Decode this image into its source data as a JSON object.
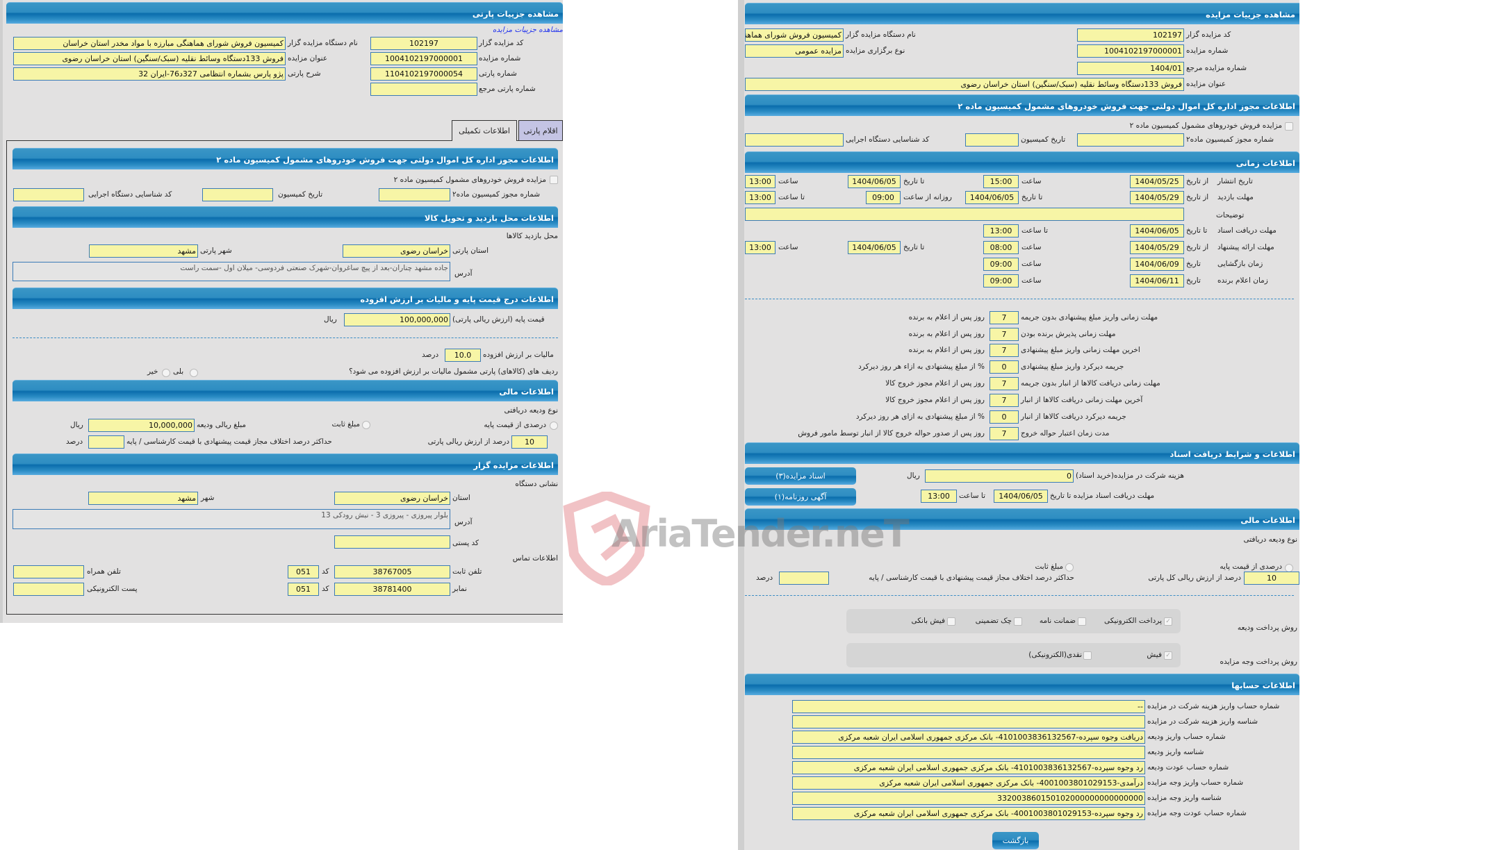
{
  "L": {
    "title": "مشاهده جزییات پارتی",
    "link": "مشاهده جزییات مزایده",
    "org_code": {
      "label": "کد مزایده گزار",
      "value": "102197"
    },
    "auction_no": {
      "label": "شماره مزایده",
      "value": "1004102197000001"
    },
    "lot_no": {
      "label": "شماره پارتی",
      "value": "1104102197000054"
    },
    "ref_lot": {
      "label": "شماره پارتی مرجع",
      "value": ""
    },
    "org_name": {
      "label": "نام دستگاه مزایده گزار",
      "value": "کمیسیون فروش شورای هماهنگی مبارزه با مواد مخدر استان خراسان"
    },
    "title_f": {
      "label": "عنوان مزایده",
      "value": "فروش 133دستگاه وسائط نقلیه (سبک/سنگین) استان خراسان رضوی"
    },
    "desc": {
      "label": "شرح پارتی",
      "value": "پژو پارس بشماره انتظامی 327د76-ایران 32"
    },
    "tabs": [
      "اقلام پارتی",
      "اطلاعات تکمیلی"
    ],
    "s1": {
      "title": "اطلاعات مجوز اداره کل اموال دولتی جهت فروش خودروهای مشمول کمیسیون ماده ۲",
      "check": "مزایده فروش خودروهای مشمول کمیسیون ماده ۲",
      "permit": "شماره مجوز کمیسیون ماده۲",
      "date": "تاریخ کمیسیون",
      "exec": "کد شناسایی دستگاه اجرایی"
    },
    "s2": {
      "title": "اطلاعات محل بازدید و تحویل کالا",
      "sub": "محل بازدید کالاها",
      "prov_l": "استان پارتی",
      "prov": "خراسان رضوی",
      "city_l": "شهر پارتی",
      "city": "مشهد",
      "addr_l": "آدرس",
      "addr": "جاده مشهد چناران-بعد از پیچ ساغروان-شهرک صنعتی فردوسی- میلان اول -سمت راست"
    },
    "s3": {
      "title": "اطلاعات درج قیمت پایه و مالیات بر ارزش افزوده",
      "base_l": "قیمت پایه (ارزش ریالی پارتی)",
      "base": "100,000,000",
      "rial": "ریال",
      "vat_l": "مالیات بر ارزش افزوده",
      "vat": "10.0",
      "percent": "درصد",
      "q": "ردیف های (کالاهای) پارتی مشمول مالیات بر ارزش افزوده می شود؟",
      "yes": "بلی",
      "no": "خیر"
    },
    "s4": {
      "title": "اطلاعات مالی",
      "type": "نوع ودیعه دریافتی",
      "pct": "درصدی از قیمت پایه",
      "fixed": "مبلغ ثابت",
      "amt_l": "مبلغ ریالی ودیعه",
      "amt": "10,000,000",
      "rial": "ریال",
      "pv": "10",
      "pv_l": "درصد از ارزش ریالی پارتی",
      "max_l": "حداکثر درصد اختلاف مجاز قیمت پیشنهادی با قیمت کارشناسی / پایه",
      "percent": "درصد"
    },
    "s5": {
      "title": "اطلاعات مزایده گزار",
      "sub": "نشانی دستگاه",
      "prov_l": "استان",
      "prov": "خراسان رضوی",
      "city_l": "شهر",
      "city": "مشهد",
      "addr_l": "آدرس",
      "addr": "بلوار پیروزی - پیروزی 3 - نبش رودکی 13",
      "zip_l": "کد پستی",
      "contact": "اطلاعات تماس",
      "tel_l": "تلفن ثابت",
      "tel": "38767005",
      "code_l": "کد",
      "code": "051",
      "mob_l": "تلفن همراه",
      "fax_l": "نمابر",
      "fax": "38781400",
      "email_l": "پست الکترونیکی"
    }
  },
  "R": {
    "title": "مشاهده جزییات مزایده",
    "org_code": {
      "label": "کد مزایده گزار",
      "value": "102197"
    },
    "auction_no": {
      "label": "شماره مزایده",
      "value": "1004102197000001"
    },
    "ref_no": {
      "label": "شماره مزایده مرجع",
      "value": "1404/01"
    },
    "title_f": {
      "label": "عنوان مزایده",
      "value": "فروش 133دستگاه وسائط نقلیه (سبک/سنگین) استان خراسان رضوی"
    },
    "org_name": {
      "label": "نام دستگاه مزایده گزار",
      "value": "کمیسیون فروش شورای هماهنگی مبارزه با مواد مخدر استان خراسان"
    },
    "type": {
      "label": "نوع برگزاری مزایده",
      "value": "مزایده عمومی"
    },
    "s1": {
      "title": "اطلاعات مجوز اداره کل اموال دولتی جهت فروش خودروهای مشمول کمیسیون ماده ۲",
      "check": "مزایده فروش خودروهای مشمول کمیسیون ماده ۲",
      "permit": "شماره مجوز کمیسیون ماده۲",
      "date": "تاریخ کمیسیون",
      "exec": "کد شناسایی دستگاه اجرایی"
    },
    "time": {
      "title": "اطلاعات زمانی",
      "from_date": "از تاریخ",
      "to_date": "تا تاریخ",
      "date": "تاریخ",
      "hour": "ساعت",
      "to_hour": "تا ساعت",
      "daily_from": "روزانه از ساعت",
      "publish": {
        "label": "تاریخ انتشار",
        "from": "1404/05/25",
        "from_t": "15:00",
        "to": "1404/06/05",
        "to_t": "13:00"
      },
      "visit": {
        "label": "مهلت بازدید",
        "from": "1404/05/29",
        "to": "1404/06/05",
        "daily": "09:00",
        "to_t": "13:00"
      },
      "notes": "توضیحات",
      "docs": {
        "label": "مهلت دریافت اسناد",
        "to": "1404/06/05",
        "to_t": "13:00"
      },
      "offer": {
        "label": "مهلت ارائه پیشنهاد",
        "from": "1404/05/29",
        "from_t": "08:00",
        "to": "1404/06/05",
        "to_t": "13:00"
      },
      "open": {
        "label": "زمان بازگشایی",
        "date": "1404/06/09",
        "t": "09:00"
      },
      "winner": {
        "label": "زمان اعلام برنده",
        "date": "1404/06/11",
        "t": "09:00"
      }
    },
    "deadlines": [
      {
        "label": "مهلت زمانی واریز مبلغ پیشنهادی بدون جریمه",
        "value": "7",
        "suffix": "روز پس از اعلام به برنده"
      },
      {
        "label": "مهلت زمانی پذیرش برنده بودن",
        "value": "7",
        "suffix": "روز پس از اعلام به برنده"
      },
      {
        "label": "اخرین مهلت زمانی واریز مبلغ پیشنهادی",
        "value": "7",
        "suffix": "روز پس از اعلام به برنده"
      },
      {
        "label": "جریمه دیرکرد واریز مبلغ پیشنهادی",
        "value": "0",
        "suffix": "% از مبلغ پیشنهادی به ازاء هر روز دیرکرد"
      },
      {
        "label": "مهلت زمانی دریافت کالاها از انبار بدون جریمه",
        "value": "7",
        "suffix": "روز پس از اعلام مجوز خروج کالا"
      },
      {
        "label": "آخرین مهلت زمانی دریافت کالاها از انبار",
        "value": "7",
        "suffix": "روز پس از اعلام مجوز خروج کالا"
      },
      {
        "label": "جریمه دیرکرد دریافت کالاها از انبار",
        "value": "0",
        "suffix": "% از مبلغ پیشنهادی به ازای هر روز دیرکرد"
      },
      {
        "label": "مدت زمان اعتبار حواله خروج",
        "value": "7",
        "suffix": "روز پس از صدور حواله خروج کالا از انبار توسط مامور فروش"
      }
    ],
    "docs": {
      "title": "اطلاعات و شرایط دریافت اسناد",
      "fee_l": "هزینه شرکت در مزایده(خرید اسناد)",
      "fee": "0",
      "rial": "ریال",
      "dl_l": "مهلت دریافت اسناد مزایده تا تاریخ",
      "dl": "1404/06/05",
      "to_hour": "تا ساعت",
      "dl_t": "13:00",
      "btn_docs": "اسناد مزایده(۳)",
      "btn_ad": "آگهی روزنامه(۱)"
    },
    "fin": {
      "title": "اطلاعات مالی",
      "type": "نوع ودیعه دریافتی",
      "pct": "درصدی از قیمت پایه",
      "fixed": "مبلغ ثابت",
      "pv": "10",
      "pv_l": "درصد از ارزش ریالی کل پارتی",
      "max_l": "حداکثر درصد اختلاف مجاز قیمت پیشنهادی با قیمت کارشناسی / پایه",
      "percent": "درصد",
      "dep_pay": "روش پرداخت ودیعه",
      "dep_opts": [
        {
          "label": "پرداخت الکترونیکی",
          "checked": true
        },
        {
          "label": "ضمانت نامه",
          "checked": false
        },
        {
          "label": "چک تضمینی",
          "checked": false
        },
        {
          "label": "فیش بانکی",
          "checked": false
        }
      ],
      "auc_pay": "روش پرداخت وجه مزایده",
      "auc_opts": [
        {
          "label": "فیش",
          "checked": true
        },
        {
          "label": "نقدی(الکترونیکی)",
          "checked": false
        }
      ]
    },
    "accounts": {
      "title": "اطلاعات حسابها",
      "rows": [
        {
          "label": "شماره حساب واریز هزینه شرکت در مزایده",
          "value": "--"
        },
        {
          "label": "شناسه واریز هزینه شرکت در مزایده",
          "value": ""
        },
        {
          "label": "شماره حساب واریز ودیعه",
          "value": "دریافت وجوه سپرده-4101003836132567- بانک مرکزی جمهوری اسلامی ایران شعبه مرکزی"
        },
        {
          "label": "شناسه واریز ودیعه",
          "value": ""
        },
        {
          "label": "شماره حساب عودت ودیعه",
          "value": "رد وجوه سپرده-4101003836132567- بانک مرکزی جمهوری اسلامی ایران شعبه مرکزی"
        },
        {
          "label": "شماره حساب واریز وجه مزایده",
          "value": "درآمدی-4001003801029153- بانک مرکزی جمهوری اسلامی ایران شعبه مرکزی"
        },
        {
          "label": "شناسه واریز وجه مزایده",
          "value": "332003860150102000000000000000"
        },
        {
          "label": "شماره حساب عودت وجه مزایده",
          "value": "رد وجوه سپرده-4001003801029153- بانک مرکزی جمهوری اسلامی ایران شعبه مرکزی"
        }
      ]
    },
    "back": "بازگشت"
  },
  "watermark": "AriaTender.neT",
  "colors": {
    "header": "#0a6dac",
    "field": "#f7f5a6",
    "field_border": "#3b7bb6",
    "panel": "#e2e1e1",
    "link": "#2233ee"
  }
}
